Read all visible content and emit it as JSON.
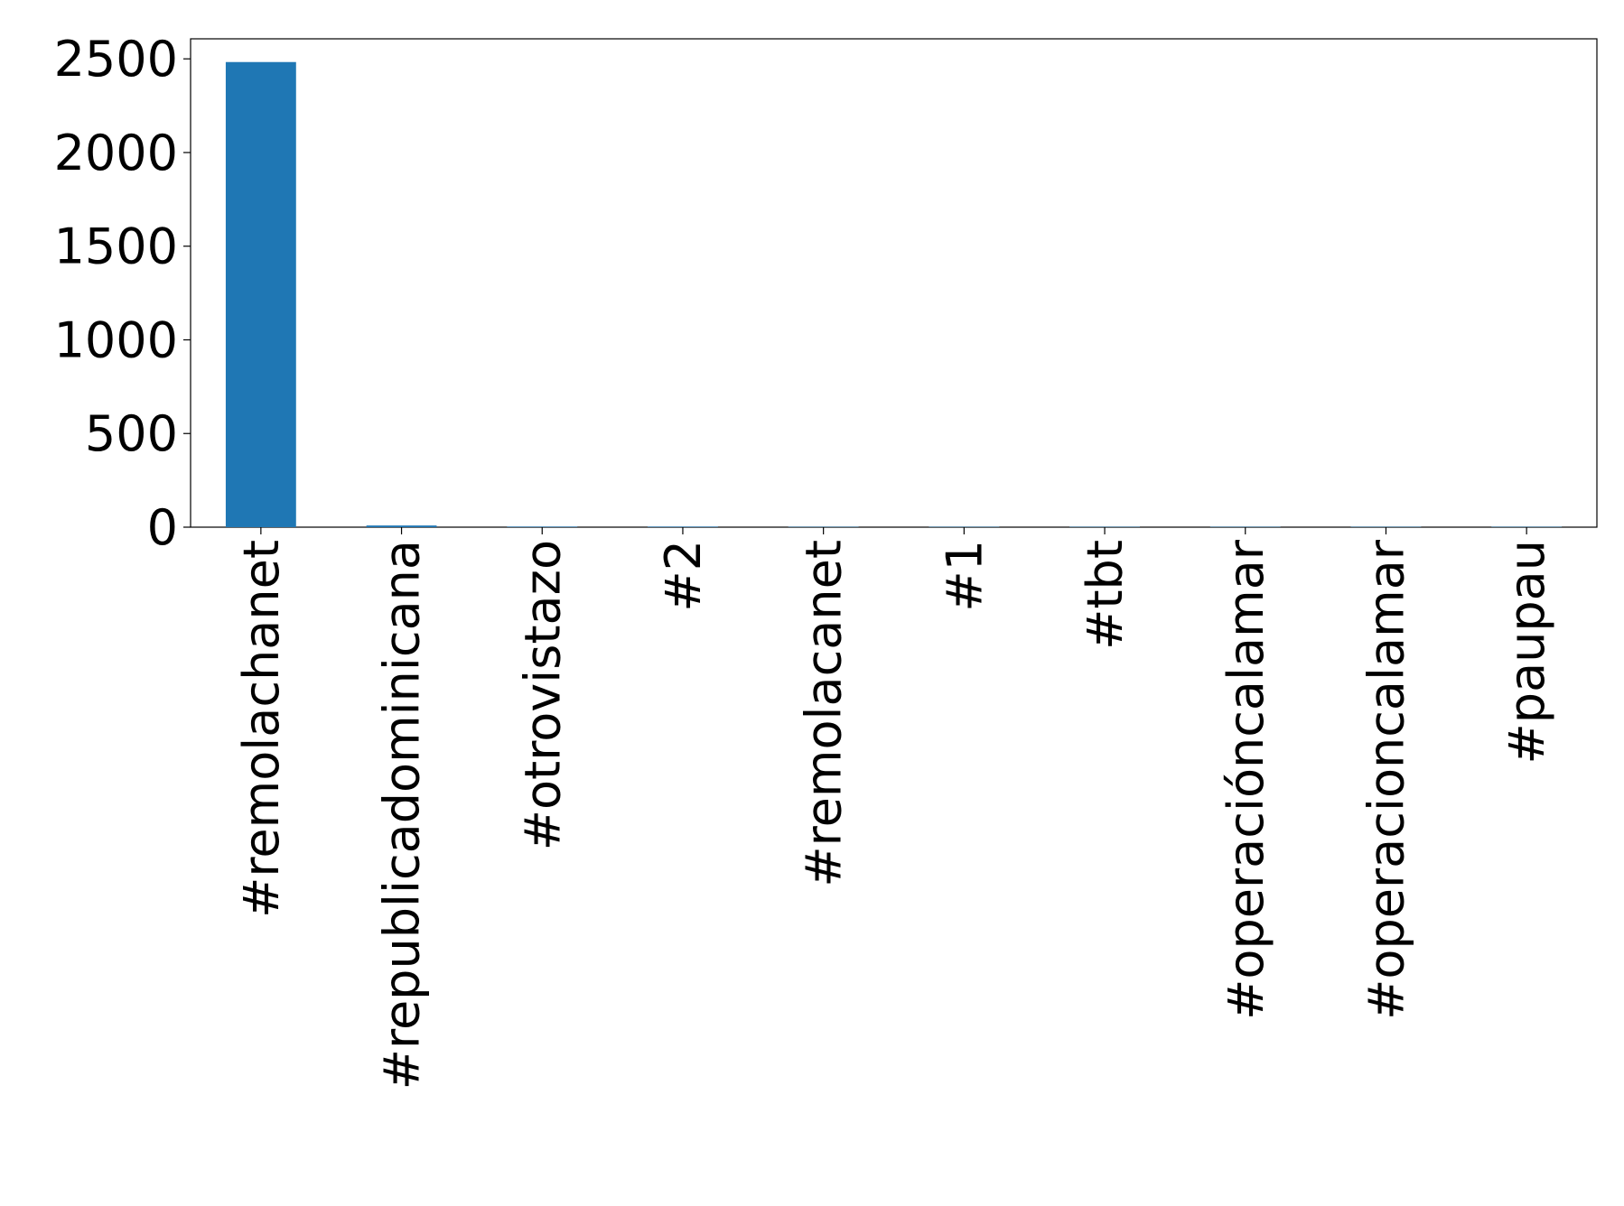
{
  "chart_data": {
    "type": "bar",
    "categories": [
      "#remolachanet",
      "#republicadominicana",
      "#otrovistazo",
      "#2",
      "#remolacanet",
      "#1",
      "#tbt",
      "#operaciόncalamar",
      "#operacioncalamar",
      "#paupau"
    ],
    "values": [
      2483,
      9,
      3,
      3,
      2,
      2,
      2,
      2,
      2,
      2
    ],
    "color": "#1f77b4",
    "ylim": [
      0,
      2607
    ],
    "yticks": [
      0,
      500,
      1000,
      1500,
      2000,
      2500
    ],
    "grid": false
  }
}
